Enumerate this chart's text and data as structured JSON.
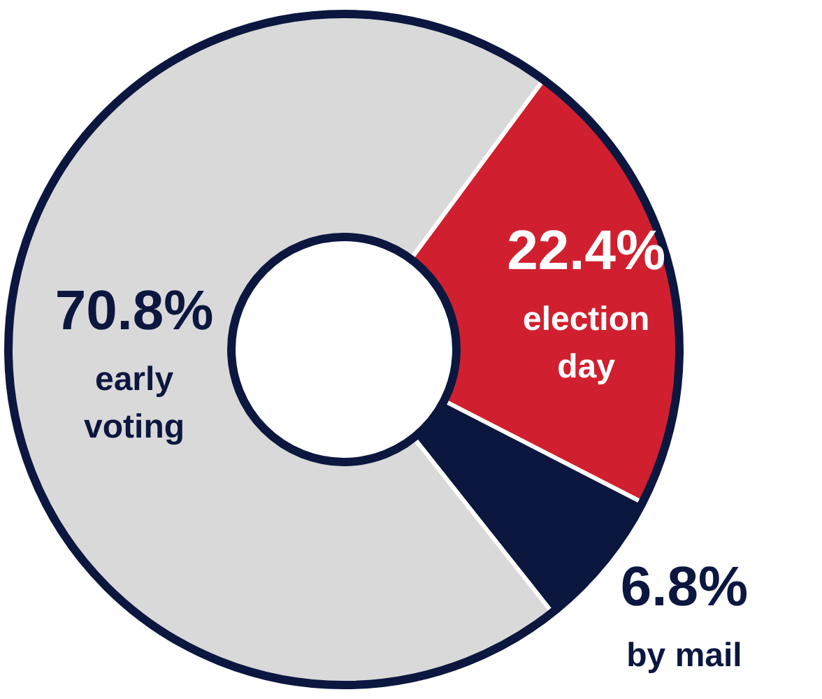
{
  "chart_data": {
    "type": "donut",
    "categories": [
      "election day",
      "by mail",
      "early voting"
    ],
    "values": [
      22.4,
      6.8,
      70.8
    ],
    "value_labels": [
      "22.4%",
      "6.8%",
      "70.8%"
    ],
    "colors": [
      "#d0202f",
      "#0c1740",
      "#d9d9d9"
    ],
    "legend": false
  }
}
